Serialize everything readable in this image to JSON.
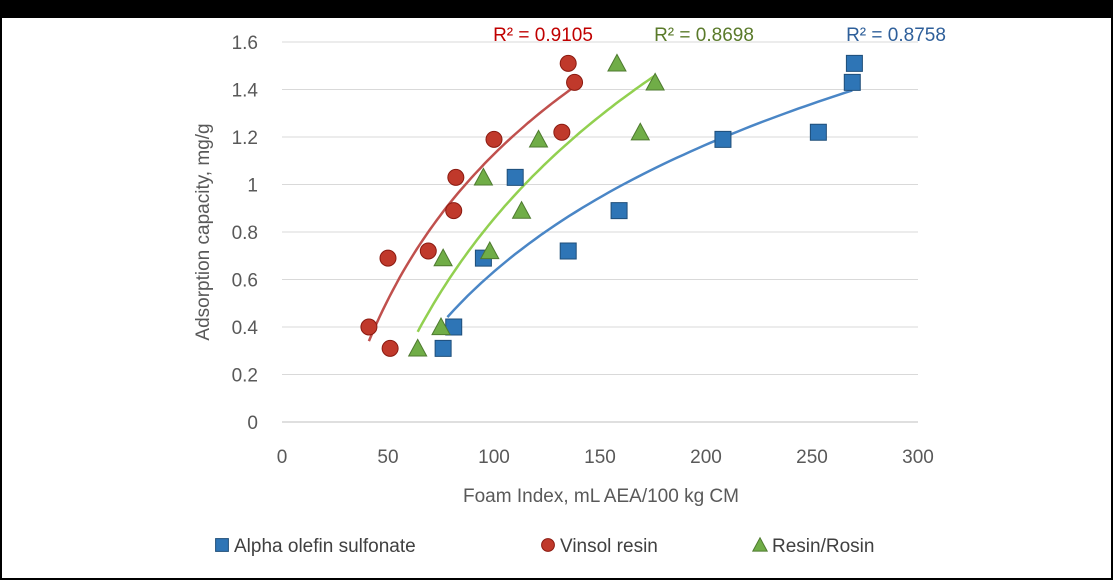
{
  "chart_data": {
    "type": "scatter",
    "xlabel": "Foam Index, mL AEA/100 kg CM",
    "ylabel": "Adsorption capacity, mg/g",
    "xlim": [
      0,
      300
    ],
    "ylim": [
      0,
      1.6
    ],
    "x_ticks": [
      "0",
      "50",
      "100",
      "150",
      "200",
      "250",
      "300"
    ],
    "y_ticks": [
      "0",
      "0.2",
      "0.4",
      "0.6",
      "0.8",
      "1",
      "1.2",
      "1.4",
      "1.6"
    ],
    "grid": "horizontal",
    "legend_position": "bottom",
    "series": [
      {
        "name": "Alpha olefin sulfonate",
        "marker": "square",
        "color": "#2e75b6",
        "trend_color": "#4a86c6",
        "points": [
          [
            76,
            0.31
          ],
          [
            81,
            0.4
          ],
          [
            95,
            0.69
          ],
          [
            110,
            1.03
          ],
          [
            135,
            0.72
          ],
          [
            159,
            0.89
          ],
          [
            208,
            1.19
          ],
          [
            253,
            1.22
          ],
          [
            269,
            1.43
          ],
          [
            270,
            1.51
          ]
        ],
        "trendline": {
          "type": "log",
          "x_range": [
            78,
            269
          ]
        },
        "r2_label": "R² = 0.8758"
      },
      {
        "name": "Vinsol resin",
        "marker": "circle",
        "color": "#c0392b",
        "trend_color": "#c0504d",
        "points": [
          [
            41,
            0.4
          ],
          [
            50,
            0.69
          ],
          [
            51,
            0.31
          ],
          [
            69,
            0.72
          ],
          [
            81,
            0.89
          ],
          [
            82,
            1.03
          ],
          [
            100,
            1.19
          ],
          [
            132,
            1.22
          ],
          [
            135,
            1.51
          ],
          [
            138,
            1.43
          ]
        ],
        "trendline": {
          "type": "log",
          "x_range": [
            41,
            137
          ]
        },
        "r2_label": "R² = 0.9105"
      },
      {
        "name": "Resin/Rosin",
        "marker": "triangle",
        "color": "#70ad47",
        "trend_color": "#92d050",
        "points": [
          [
            64,
            0.31
          ],
          [
            75,
            0.4
          ],
          [
            76,
            0.69
          ],
          [
            95,
            1.03
          ],
          [
            98,
            0.72
          ],
          [
            113,
            0.89
          ],
          [
            121,
            1.19
          ],
          [
            158,
            1.51
          ],
          [
            169,
            1.22
          ],
          [
            176,
            1.43
          ]
        ],
        "trendline": {
          "type": "log",
          "x_range": [
            64,
            176
          ]
        },
        "r2_label": "R² = 0.8698"
      }
    ]
  }
}
